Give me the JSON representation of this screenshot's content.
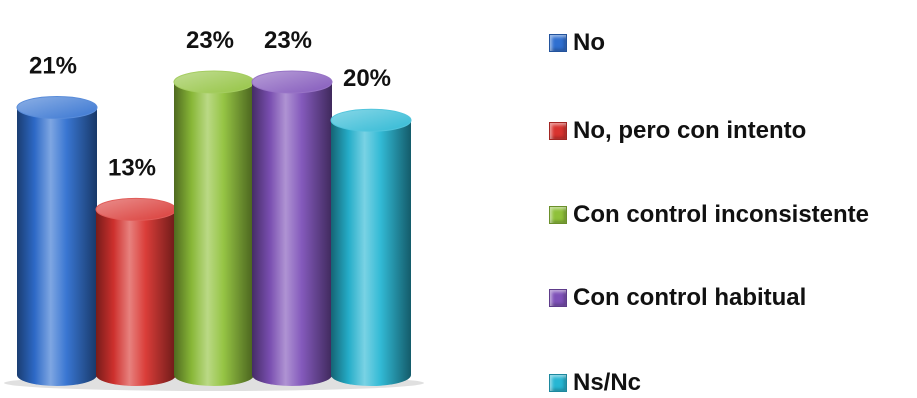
{
  "chart_data": {
    "type": "bar",
    "style": "3d-cylinder",
    "categories": [
      "No",
      "No, pero con intento",
      "Con control inconsistente",
      "Con control habitual",
      "Ns/Nc"
    ],
    "values": [
      21,
      13,
      23,
      23,
      20
    ],
    "data_labels": [
      "21%",
      "13%",
      "23%",
      "23%",
      "20%"
    ],
    "colors": [
      "#2f6fd0",
      "#d8332f",
      "#8fc13a",
      "#7e51b8",
      "#27b6d3"
    ],
    "legend_position": "right",
    "grid": false,
    "ylim": [
      0,
      23
    ]
  }
}
